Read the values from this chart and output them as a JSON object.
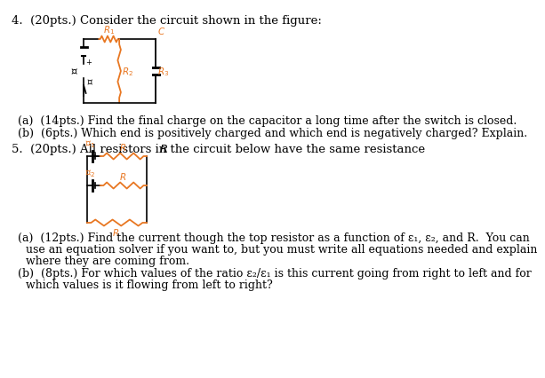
{
  "title4": "4.  (20pts.) Consider the circuit shown in the figure:",
  "qa_14": "(a)  (14pts.) Find the final charge on the capacitor a long time after the switch is closed.",
  "qb_6": "(b)  (6pts.) Which end is positively charged and which end is negatively charged? Explain.",
  "qa_12_1": "(a)  (12pts.) Find the current though the top resistor as a function of ε₁, ε₂, and R.  You can",
  "qa_12_2": "use an equation solver if you want to, but you must write all equations needed and explain",
  "qa_12_3": "where they are coming from.",
  "qb_8_1": "(b)  (8pts.) For which values of the ratio ε₂/ε₁ is this current going from right to left and for",
  "qb_8_2": "which values is it flowing from left to right?",
  "orange": "#E87722",
  "black": "#000000",
  "bg": "#ffffff",
  "font_size_main": 9.5,
  "font_size_label": 7.5
}
